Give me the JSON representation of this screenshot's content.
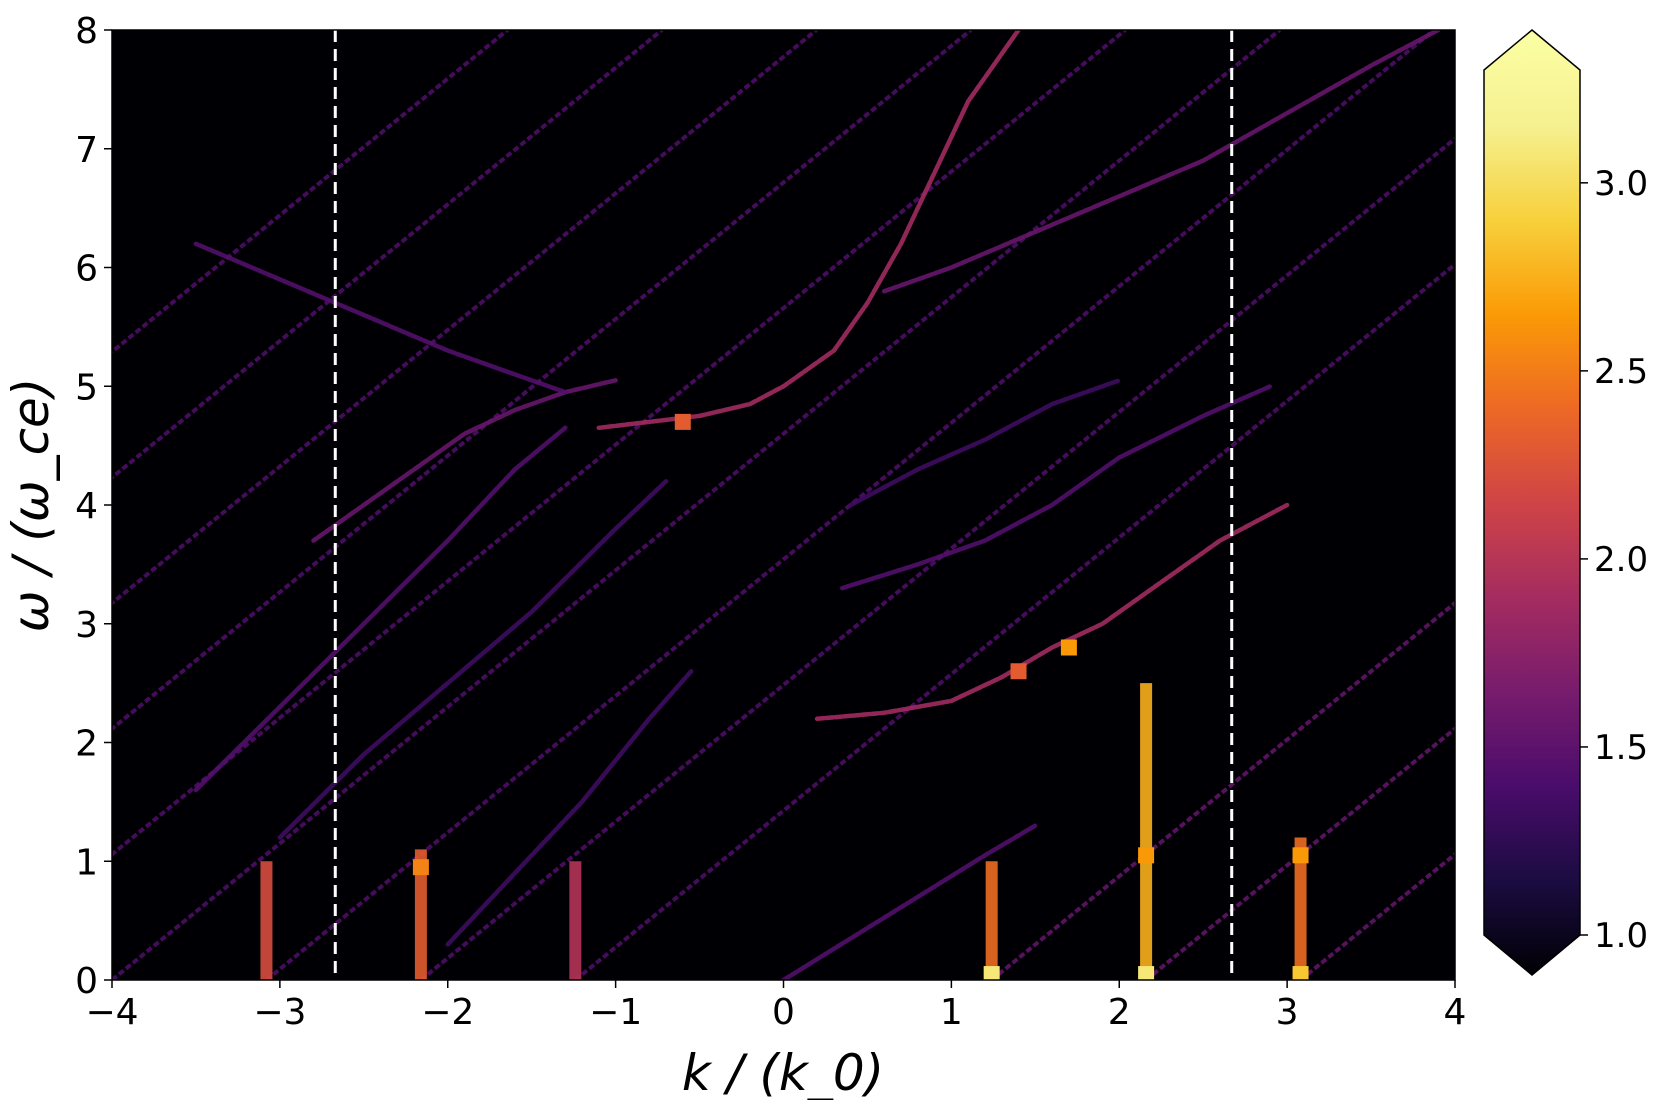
{
  "chart_data": {
    "type": "heatmap",
    "title": "",
    "xlabel": "k / (k_0)",
    "ylabel": "ω / (ω_ce)",
    "xlim": [
      -4,
      4
    ],
    "ylim": [
      0,
      8
    ],
    "x_ticks": [
      -4,
      -3,
      -2,
      -1,
      0,
      1,
      2,
      3,
      4
    ],
    "x_tick_labels": [
      "−4",
      "−3",
      "−2",
      "−1",
      "0",
      "1",
      "2",
      "3",
      "4"
    ],
    "y_ticks": [
      0,
      1,
      2,
      3,
      4,
      5,
      6,
      7,
      8
    ],
    "y_tick_labels": [
      "0",
      "1",
      "2",
      "3",
      "4",
      "5",
      "6",
      "7",
      "8"
    ],
    "grid": false,
    "colormap": "inferno",
    "colorbar": {
      "range": [
        1.0,
        3.3
      ],
      "extend": "both",
      "ticks": [
        1.0,
        1.5,
        2.0,
        2.5,
        3.0
      ],
      "tick_labels": [
        "1.0",
        "1.5",
        "2.0",
        "2.5",
        "3.0"
      ]
    },
    "vertical_lines": [
      {
        "x": -2.67,
        "style": "dashed",
        "color": "#ffffff"
      },
      {
        "x": 2.67,
        "style": "dashed",
        "color": "#ffffff"
      }
    ],
    "background_value": 1.0,
    "ridges": {
      "parallel_family": {
        "slope": 1.15,
        "spacing_k": 0.92,
        "centers_k_at_w0": [
          -8.6,
          -7.68,
          -6.76,
          -5.84,
          -4.92,
          -4.0,
          -3.08,
          -2.16,
          -1.24,
          1.24,
          2.16,
          3.08,
          4.0
        ],
        "value": 1.5
      },
      "dispersion_curves": [
        {
          "name": "",
          "points": [
            [
              -1.0,
              5.05
            ],
            [
              -1.3,
              4.95
            ],
            [
              -1.6,
              4.8
            ],
            [
              -1.9,
              4.6
            ],
            [
              -2.2,
              4.3
            ],
            [
              -2.5,
              4.0
            ],
            [
              -2.8,
              3.7
            ]
          ],
          "value": 1.6
        },
        {
          "name": "",
          "points": [
            [
              -1.3,
              4.95
            ],
            [
              -1.6,
              5.1
            ],
            [
              -2.0,
              5.3
            ],
            [
              -2.5,
              5.6
            ],
            [
              -3.0,
              5.9
            ],
            [
              -3.5,
              6.2
            ]
          ],
          "value": 1.5
        },
        {
          "name": "",
          "points": [
            [
              -1.1,
              4.65
            ],
            [
              -0.8,
              4.7
            ],
            [
              -0.5,
              4.75
            ],
            [
              -0.2,
              4.85
            ],
            [
              0.0,
              5.0
            ],
            [
              0.3,
              5.3
            ],
            [
              0.5,
              5.7
            ],
            [
              0.7,
              6.2
            ],
            [
              0.9,
              6.8
            ],
            [
              1.1,
              7.4
            ],
            [
              1.4,
              8.0
            ]
          ],
          "value": 1.9
        },
        {
          "name": "",
          "points": [
            [
              0.6,
              5.8
            ],
            [
              1.0,
              6.0
            ],
            [
              1.5,
              6.3
            ],
            [
              2.0,
              6.6
            ],
            [
              2.5,
              6.9
            ],
            [
              3.0,
              7.3
            ],
            [
              3.5,
              7.7
            ],
            [
              3.9,
              8.0
            ]
          ],
          "value": 1.6
        },
        {
          "name": "",
          "points": [
            [
              -1.3,
              4.65
            ],
            [
              -1.6,
              4.3
            ],
            [
              -2.0,
              3.7
            ],
            [
              -2.5,
              3.0
            ],
            [
              -3.0,
              2.3
            ],
            [
              -3.5,
              1.6
            ]
          ],
          "value": 1.5
        },
        {
          "name": "",
          "points": [
            [
              -0.7,
              4.2
            ],
            [
              -1.0,
              3.8
            ],
            [
              -1.5,
              3.1
            ],
            [
              -2.0,
              2.5
            ],
            [
              -2.5,
              1.9
            ],
            [
              -3.0,
              1.2
            ]
          ],
          "value": 1.4
        },
        {
          "name": "",
          "points": [
            [
              0.4,
              4.0
            ],
            [
              0.8,
              4.3
            ],
            [
              1.2,
              4.55
            ],
            [
              1.6,
              4.85
            ],
            [
              2.0,
              5.05
            ]
          ],
          "value": 1.4
        },
        {
          "name": "",
          "points": [
            [
              0.35,
              3.3
            ],
            [
              0.8,
              3.5
            ],
            [
              1.2,
              3.7
            ],
            [
              1.6,
              4.0
            ],
            [
              2.0,
              4.4
            ],
            [
              2.5,
              4.75
            ],
            [
              2.9,
              5.0
            ]
          ],
          "value": 1.5
        },
        {
          "name": "",
          "points": [
            [
              0.2,
              2.2
            ],
            [
              0.6,
              2.25
            ],
            [
              1.0,
              2.35
            ],
            [
              1.3,
              2.55
            ],
            [
              1.6,
              2.8
            ],
            [
              1.9,
              3.0
            ],
            [
              2.2,
              3.3
            ],
            [
              2.6,
              3.7
            ],
            [
              3.0,
              4.0
            ]
          ],
          "value": 1.9
        },
        {
          "name": "",
          "points": [
            [
              -0.55,
              2.6
            ],
            [
              -0.8,
              2.2
            ],
            [
              -1.2,
              1.5
            ],
            [
              -1.6,
              0.9
            ],
            [
              -2.0,
              0.3
            ]
          ],
          "value": 1.4
        },
        {
          "name": "",
          "points": [
            [
              0.0,
              0.0
            ],
            [
              0.4,
              0.35
            ],
            [
              0.8,
              0.7
            ],
            [
              1.2,
              1.05
            ],
            [
              1.5,
              1.3
            ]
          ],
          "value": 1.5
        }
      ],
      "vertical_spikes": [
        {
          "k": -3.08,
          "w_top": 1.0,
          "value": 2.2
        },
        {
          "k": -2.16,
          "w_top": 1.1,
          "value": 2.3
        },
        {
          "k": -1.24,
          "w_top": 1.0,
          "value": 2.0
        },
        {
          "k": 1.24,
          "w_top": 1.0,
          "value": 2.4
        },
        {
          "k": 2.16,
          "w_top": 2.5,
          "value": 2.7
        },
        {
          "k": 3.08,
          "w_top": 1.2,
          "value": 2.4
        }
      ],
      "bright_spots": [
        {
          "k": 1.24,
          "w": 0.05,
          "value": 3.0
        },
        {
          "k": 2.16,
          "w": 0.05,
          "value": 3.0
        },
        {
          "k": 3.08,
          "w": 0.05,
          "value": 2.8
        },
        {
          "k": -2.16,
          "w": 0.95,
          "value": 2.5
        },
        {
          "k": 2.16,
          "w": 1.05,
          "value": 2.6
        },
        {
          "k": 3.08,
          "w": 1.05,
          "value": 2.6
        },
        {
          "k": 1.7,
          "w": 2.8,
          "value": 2.6
        },
        {
          "k": 1.4,
          "w": 2.6,
          "value": 2.3
        },
        {
          "k": -0.6,
          "w": 4.7,
          "value": 2.3
        }
      ]
    }
  }
}
